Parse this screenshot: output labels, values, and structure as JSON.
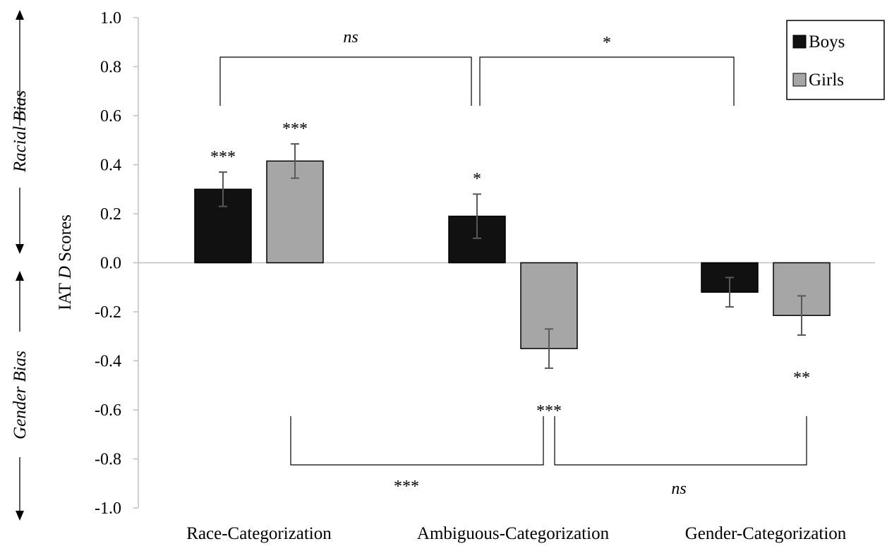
{
  "chart_data": {
    "type": "bar",
    "categories": [
      "Race-Categorization",
      "Ambiguous-Categorization",
      "Gender-Categorization"
    ],
    "series": [
      {
        "name": "Boys",
        "color": "#111111",
        "values": [
          0.3,
          0.19,
          -0.12
        ],
        "errors": [
          0.07,
          0.09,
          0.06
        ],
        "significance": [
          "***",
          "*",
          ""
        ]
      },
      {
        "name": "Girls",
        "color": "#a6a6a6",
        "values": [
          0.415,
          -0.35,
          -0.215
        ],
        "errors": [
          0.07,
          0.08,
          0.08
        ],
        "significance": [
          "***",
          "***",
          "**"
        ]
      }
    ],
    "ylabel_prefix": "IAT ",
    "ylabel_italic": "D",
    "ylabel_suffix": " Scores",
    "ylim": [
      -1.0,
      1.0
    ],
    "yticks": [
      "1.0",
      "0.8",
      "0.6",
      "0.4",
      "0.2",
      "0.0",
      "-0.2",
      "-0.4",
      "-0.6",
      "-0.8",
      "-1.0"
    ],
    "ytick_values": [
      1.0,
      0.8,
      0.6,
      0.4,
      0.2,
      0.0,
      -0.2,
      -0.4,
      -0.6,
      -0.8,
      -1.0
    ],
    "legend_position": "top-right",
    "side_labels": {
      "top": "Racial Bias",
      "bottom": "Gender Bias"
    },
    "comparisons": [
      {
        "label": "ns",
        "italic": true,
        "position": "top",
        "between": [
          "Race-Categorization",
          "Ambiguous-Categorization"
        ]
      },
      {
        "label": "*",
        "italic": false,
        "position": "top",
        "between": [
          "Ambiguous-Categorization",
          "Gender-Categorization"
        ]
      },
      {
        "label": "***",
        "italic": false,
        "position": "bottom",
        "between": [
          "Race-Categorization",
          "Ambiguous-Categorization"
        ]
      },
      {
        "label": "ns",
        "italic": true,
        "position": "bottom",
        "between": [
          "Ambiguous-Categorization",
          "Gender-Categorization"
        ]
      }
    ]
  }
}
